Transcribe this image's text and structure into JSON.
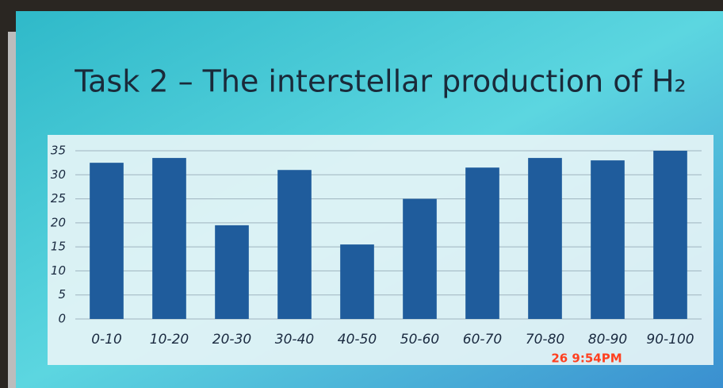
{
  "chart_data": {
    "type": "bar",
    "title": "Task 2 – The interstellar production of H₂",
    "categories": [
      "0-10",
      "10-20",
      "20-30",
      "30-40",
      "40-50",
      "50-60",
      "60-70",
      "70-80",
      "80-90",
      "90-100"
    ],
    "values": [
      32.5,
      33.5,
      19.5,
      31,
      15.5,
      25,
      31.5,
      33.5,
      33,
      35
    ],
    "color": "#1f5c9c",
    "ylim": [
      0,
      35
    ],
    "yticks": [
      0,
      5,
      10,
      15,
      20,
      25,
      30,
      35
    ],
    "grid": true,
    "annotation": "26  9:54PM"
  }
}
